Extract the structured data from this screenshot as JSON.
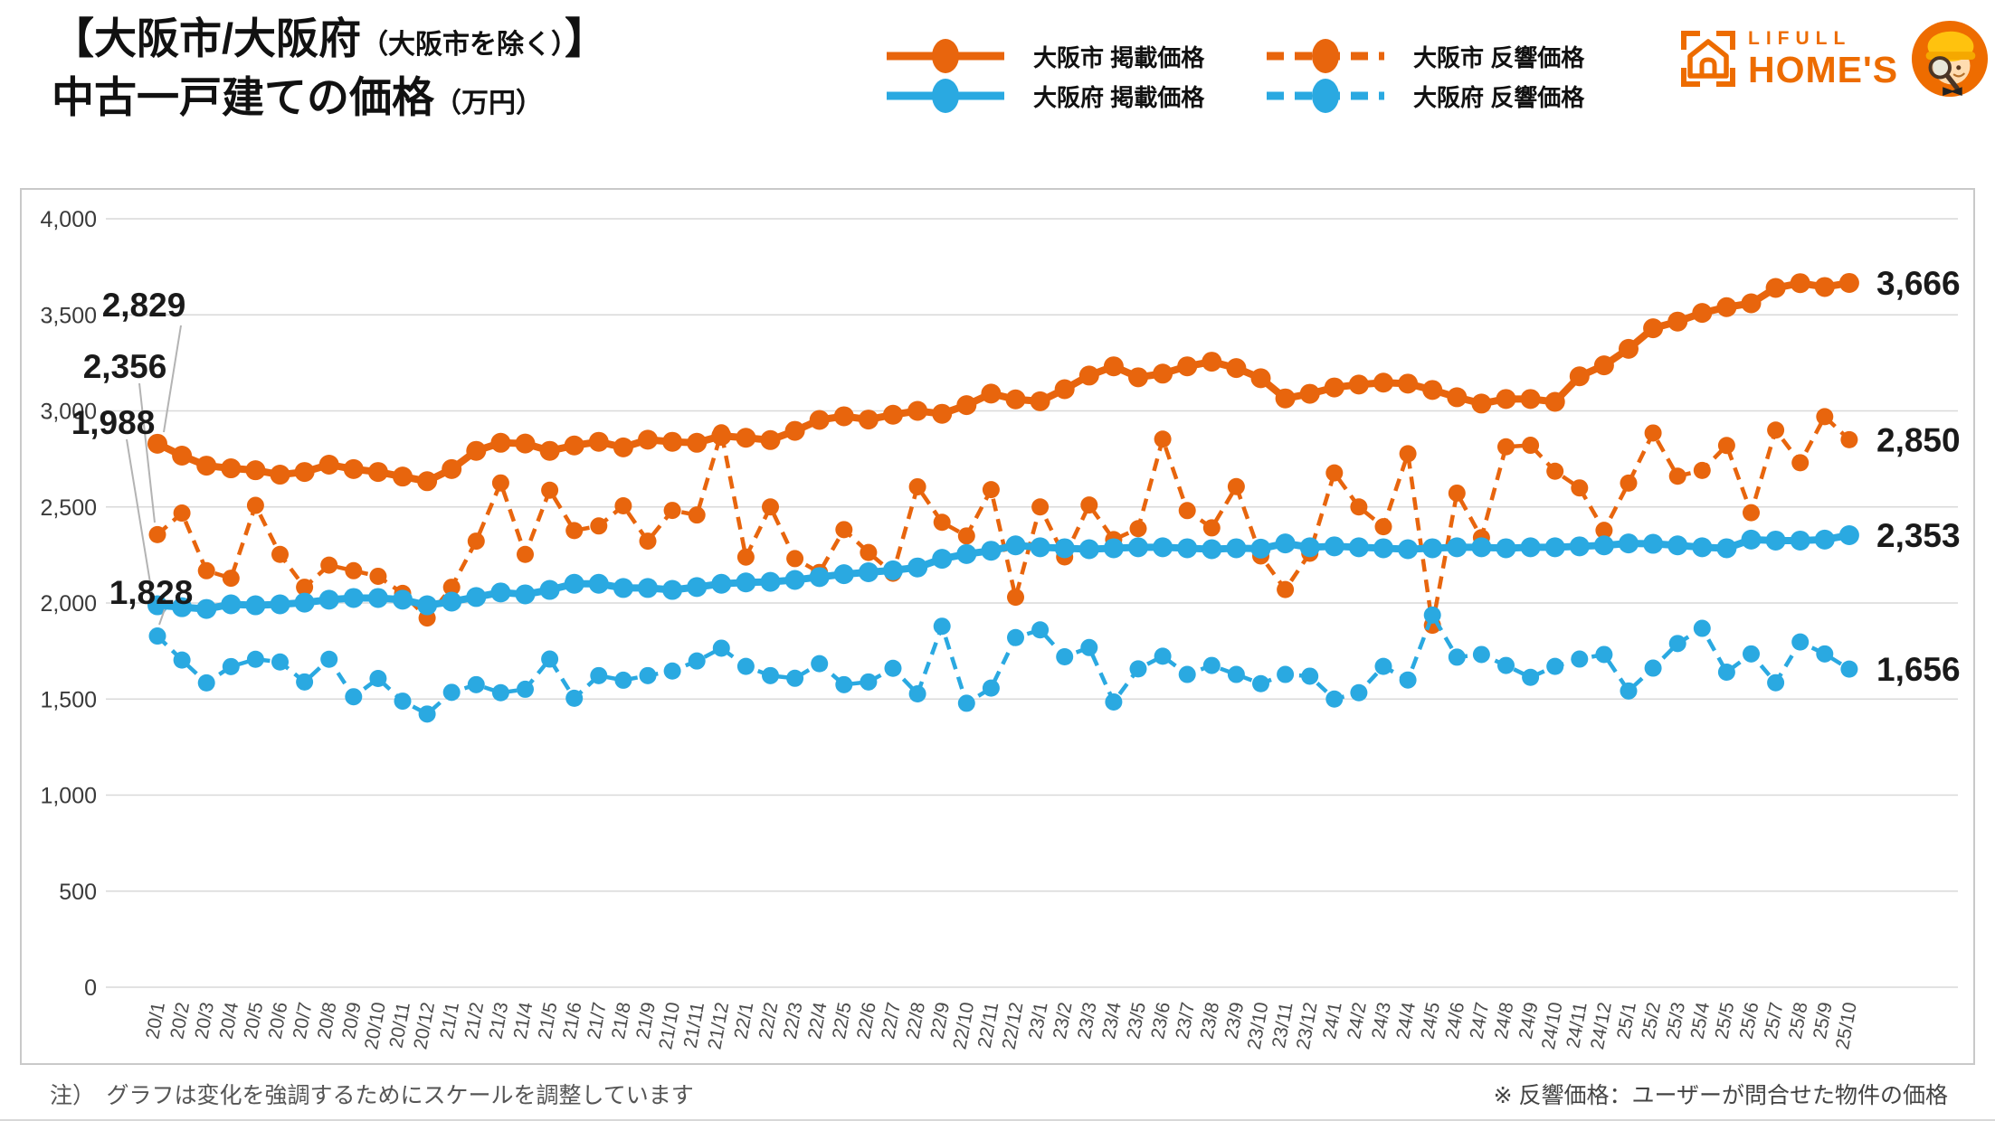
{
  "header": {
    "title_line1_main": "【大阪市/大阪府",
    "title_line1_paren": "（大阪市を除く）",
    "title_line1_close": "】",
    "title_line2_main": "中古一戸建ての価格",
    "title_line2_unit": "（万円）"
  },
  "logo": {
    "brand_small": "LIFULL",
    "brand_big": "HOME'S",
    "brand_color": "#ED6C00"
  },
  "legend": {
    "items": [
      {
        "label": "大阪市 掲載価格",
        "color": "#E8650D",
        "style": "solid"
      },
      {
        "label": "大阪市 反響価格",
        "color": "#E8650D",
        "style": "dashed"
      },
      {
        "label": "大阪府 掲載価格",
        "color": "#2AA9E1",
        "style": "solid"
      },
      {
        "label": "大阪府 反響価格",
        "color": "#2AA9E1",
        "style": "dashed"
      }
    ]
  },
  "footnotes": {
    "left": "注）　グラフは変化を強調するためにスケールを調整しています",
    "right": "※ 反響価格：ユーザーが問合せた物件の価格"
  },
  "chart_data": {
    "type": "line",
    "title": "中古一戸建ての価格（万円）",
    "ylim": [
      0,
      4000
    ],
    "ytick_interval": 500,
    "grid": true,
    "x": [
      "20/1",
      "20/2",
      "20/3",
      "20/4",
      "20/5",
      "20/6",
      "20/7",
      "20/8",
      "20/9",
      "20/10",
      "20/11",
      "20/12",
      "21/1",
      "21/2",
      "21/3",
      "21/4",
      "21/5",
      "21/6",
      "21/7",
      "21/8",
      "21/9",
      "21/10",
      "21/11",
      "21/12",
      "22/1",
      "22/2",
      "22/3",
      "22/4",
      "22/5",
      "22/6",
      "22/7",
      "22/8",
      "22/9",
      "22/10",
      "22/11",
      "22/12",
      "23/1",
      "23/2",
      "23/3",
      "23/4",
      "23/5",
      "23/6",
      "23/7",
      "23/8",
      "23/9",
      "23/10",
      "23/11",
      "23/12",
      "24/1",
      "24/2",
      "24/3",
      "24/4",
      "24/5",
      "24/6",
      "24/7",
      "24/8",
      "24/9",
      "24/10",
      "24/11",
      "24/12",
      "25/1",
      "25/2",
      "25/3",
      "25/4",
      "25/5",
      "25/6",
      "25/7",
      "25/8",
      "25/9",
      "25/10"
    ],
    "series": [
      {
        "name": "大阪市 掲載価格",
        "style": "solid",
        "color": "#E8650D",
        "values": [
          2829,
          2767,
          2715,
          2701,
          2691,
          2668,
          2682,
          2720,
          2697,
          2682,
          2658,
          2634,
          2697,
          2792,
          2834,
          2830,
          2792,
          2820,
          2839,
          2810,
          2850,
          2839,
          2834,
          2870,
          2860,
          2848,
          2896,
          2953,
          2972,
          2955,
          2980,
          3000,
          2985,
          3030,
          3090,
          3060,
          3050,
          3113,
          3184,
          3232,
          3175,
          3194,
          3232,
          3256,
          3223,
          3170,
          3065,
          3089,
          3122,
          3137,
          3147,
          3142,
          3109,
          3071,
          3038,
          3062,
          3062,
          3047,
          3180,
          3237,
          3323,
          3430,
          3465,
          3510,
          3540,
          3560,
          3640,
          3665,
          3645,
          3666
        ]
      },
      {
        "name": "大阪市 反響価格",
        "style": "dashed",
        "color": "#E8650D",
        "values": [
          2356,
          2468,
          2168,
          2129,
          2508,
          2253,
          2082,
          2197,
          2168,
          2139,
          2050,
          1922,
          2082,
          2322,
          2625,
          2253,
          2587,
          2377,
          2401,
          2506,
          2322,
          2482,
          2458,
          2886,
          2239,
          2500,
          2231,
          2159,
          2382,
          2263,
          2155,
          2605,
          2420,
          2349,
          2590,
          2030,
          2500,
          2240,
          2510,
          2330,
          2387,
          2853,
          2481,
          2391,
          2606,
          2245,
          2070,
          2259,
          2677,
          2500,
          2397,
          2777,
          1884,
          2572,
          2340,
          2813,
          2821,
          2686,
          2599,
          2378,
          2624,
          2885,
          2660,
          2690,
          2820,
          2470,
          2900,
          2730,
          2970,
          2850
        ]
      },
      {
        "name": "大阪府 掲載価格",
        "style": "solid",
        "color": "#2AA9E1",
        "values": [
          1988,
          1978,
          1969,
          1993,
          1988,
          1993,
          2002,
          2017,
          2026,
          2026,
          2017,
          1988,
          2007,
          2031,
          2055,
          2045,
          2068,
          2100,
          2100,
          2078,
          2078,
          2068,
          2083,
          2100,
          2107,
          2110,
          2120,
          2135,
          2150,
          2160,
          2170,
          2185,
          2230,
          2255,
          2272,
          2300,
          2290,
          2285,
          2280,
          2285,
          2290,
          2290,
          2285,
          2280,
          2285,
          2283,
          2310,
          2290,
          2295,
          2290,
          2285,
          2280,
          2285,
          2290,
          2290,
          2285,
          2290,
          2290,
          2295,
          2300,
          2310,
          2308,
          2300,
          2290,
          2285,
          2330,
          2325,
          2325,
          2330,
          2353
        ]
      },
      {
        "name": "大阪府 反響価格",
        "style": "dashed",
        "color": "#2AA9E1",
        "values": [
          1828,
          1703,
          1584,
          1669,
          1707,
          1693,
          1589,
          1707,
          1512,
          1607,
          1489,
          1422,
          1535,
          1575,
          1533,
          1551,
          1708,
          1504,
          1622,
          1598,
          1622,
          1646,
          1698,
          1765,
          1670,
          1622,
          1608,
          1684,
          1575,
          1589,
          1660,
          1527,
          1879,
          1478,
          1557,
          1820,
          1860,
          1720,
          1768,
          1485,
          1657,
          1723,
          1628,
          1675,
          1628,
          1580,
          1628,
          1619,
          1500,
          1533,
          1670,
          1599,
          1937,
          1718,
          1732,
          1675,
          1613,
          1670,
          1708,
          1732,
          1542,
          1661,
          1789,
          1868,
          1640,
          1735,
          1585,
          1797,
          1735,
          1656
        ]
      }
    ],
    "start_labels": [
      "2,829",
      "2,356",
      "1,988",
      "1,828"
    ],
    "end_labels": [
      "3,666",
      "2,850",
      "2,353",
      "1,656"
    ],
    "legend_position": "top"
  }
}
